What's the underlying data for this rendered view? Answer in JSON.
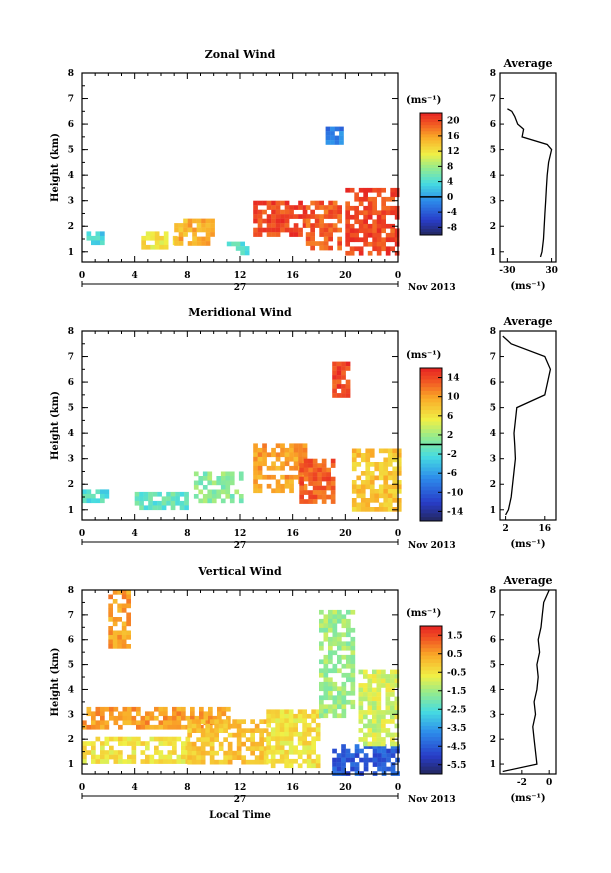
{
  "chart_data": [
    {
      "type": "heatmap",
      "title": "Zonal Wind",
      "ylabel": "Height (km)",
      "y_ticks": [
        "1",
        "2",
        "3",
        "4",
        "5",
        "6",
        "7",
        "8"
      ],
      "ylim": [
        0.6,
        8
      ],
      "x_ticks": [
        "0",
        "4",
        "8",
        "12",
        "16",
        "20",
        "0"
      ],
      "date_label": "27",
      "month_label": "Nov 2013",
      "xlabel": "",
      "colorbar": {
        "unit_label": "(ms⁻¹)",
        "ticks": [
          "20",
          "16",
          "12",
          "8",
          "4",
          "0",
          "-4",
          "-8"
        ],
        "range": [
          -10,
          22
        ],
        "zero_line": 0
      },
      "profile": {
        "title": "Average",
        "x_ticks": [
          "-30",
          "30"
        ],
        "xlim": [
          -40,
          36
        ],
        "xlabel": "(ms⁻¹)",
        "height": [
          0.8,
          1.0,
          1.5,
          2.0,
          2.5,
          3.0,
          3.5,
          4.0,
          4.5,
          5.0,
          5.2,
          5.5,
          5.8,
          6.0,
          6.3,
          6.5,
          6.6
        ],
        "value": [
          15,
          17,
          19,
          20,
          21,
          22,
          23,
          24,
          26,
          30,
          24,
          -10,
          -8,
          -16,
          -20,
          -24,
          -30
        ]
      },
      "regions": [
        {
          "name": "low-cyan",
          "x": [
            0,
            1.5
          ],
          "y": [
            1.3,
            1.8
          ],
          "level": 3
        },
        {
          "name": "low-yellow",
          "x": [
            4.5,
            7
          ],
          "y": [
            1.1,
            1.8
          ],
          "level": 12
        },
        {
          "name": "orange-band",
          "x": [
            7,
            10
          ],
          "y": [
            1.4,
            2.3
          ],
          "level": 15
        },
        {
          "name": "cyan-patch",
          "x": [
            11,
            12.5
          ],
          "y": [
            1.0,
            1.4
          ],
          "level": 4
        },
        {
          "name": "red-16",
          "x": [
            13,
            17
          ],
          "y": [
            1.7,
            3.0
          ],
          "level": 20
        },
        {
          "name": "red-18",
          "x": [
            17,
            19.5
          ],
          "y": [
            1.2,
            3.0
          ],
          "level": 19
        },
        {
          "name": "red-20",
          "x": [
            20,
            24
          ],
          "y": [
            1.0,
            3.5
          ],
          "level": 20
        },
        {
          "name": "upper-blue",
          "x": [
            18.5,
            19.8
          ],
          "y": [
            5.2,
            5.9
          ],
          "level": -2
        }
      ]
    },
    {
      "type": "heatmap",
      "title": "Meridional Wind",
      "ylabel": "Height (km)",
      "y_ticks": [
        "1",
        "2",
        "3",
        "4",
        "5",
        "6",
        "7",
        "8"
      ],
      "ylim": [
        0.6,
        8
      ],
      "x_ticks": [
        "0",
        "4",
        "8",
        "12",
        "16",
        "20",
        "0"
      ],
      "date_label": "27",
      "month_label": "Nov 2013",
      "xlabel": "",
      "colorbar": {
        "unit_label": "(ms⁻¹)",
        "ticks": [
          "14",
          "10",
          "6",
          "2",
          "-2",
          "-6",
          "-10",
          "-14"
        ],
        "range": [
          -16,
          16
        ],
        "zero_line": 0
      },
      "profile": {
        "title": "Average",
        "x_ticks": [
          "2",
          "16"
        ],
        "xlim": [
          0,
          20
        ],
        "xlabel": "(ms⁻¹)",
        "height": [
          0.8,
          1.0,
          1.5,
          2.0,
          2.5,
          3.0,
          3.5,
          4.0,
          4.5,
          5.0,
          5.5,
          6.0,
          6.5,
          7.0,
          7.5,
          7.8
        ],
        "value": [
          2,
          3,
          4,
          4.5,
          5,
          5.5,
          5.3,
          5,
          5.5,
          6,
          16,
          17,
          18,
          16,
          4,
          1
        ]
      },
      "regions": [
        {
          "name": "low-cyan",
          "x": [
            0,
            2
          ],
          "y": [
            1.3,
            1.8
          ],
          "level": -2
        },
        {
          "name": "low-green",
          "x": [
            4,
            8
          ],
          "y": [
            1.0,
            1.7
          ],
          "level": -1
        },
        {
          "name": "green-band",
          "x": [
            8.5,
            12
          ],
          "y": [
            1.4,
            2.5
          ],
          "level": 1
        },
        {
          "name": "orange-16",
          "x": [
            13,
            17
          ],
          "y": [
            1.8,
            3.6
          ],
          "level": 10
        },
        {
          "name": "red-18",
          "x": [
            16.5,
            19
          ],
          "y": [
            1.3,
            3.0
          ],
          "level": 13
        },
        {
          "name": "red-upper",
          "x": [
            19,
            20.3
          ],
          "y": [
            5.5,
            6.8
          ],
          "level": 14
        },
        {
          "name": "orange-22",
          "x": [
            20.5,
            24
          ],
          "y": [
            1.0,
            3.4
          ],
          "level": 8
        }
      ]
    },
    {
      "type": "heatmap",
      "title": "Vertical Wind",
      "ylabel": "Height (km)",
      "y_ticks": [
        "1",
        "2",
        "3",
        "4",
        "5",
        "6",
        "7",
        "8"
      ],
      "ylim": [
        0.6,
        8
      ],
      "x_ticks": [
        "0",
        "4",
        "8",
        "12",
        "16",
        "20",
        "0"
      ],
      "date_label": "27",
      "month_label": "Nov 2013",
      "xlabel": "Local Time",
      "colorbar": {
        "unit_label": "(ms⁻¹)",
        "ticks": [
          "1.5",
          "0.5",
          "-0.5",
          "-1.5",
          "-2.5",
          "-3.5",
          "-4.5",
          "-5.5"
        ],
        "range": [
          -6,
          2
        ]
      },
      "profile": {
        "title": "Average",
        "x_ticks": [
          "-2",
          "0"
        ],
        "xlim": [
          -3.6,
          0.5
        ],
        "xlabel": "(ms⁻¹)",
        "height": [
          0.7,
          1.0,
          1.5,
          2.0,
          2.5,
          3.0,
          3.5,
          4.0,
          4.5,
          5.0,
          5.5,
          6.0,
          6.5,
          7.0,
          7.5,
          8.0
        ],
        "value": [
          -3.4,
          -0.9,
          -1.0,
          -1.1,
          -1.2,
          -1.0,
          -1.1,
          -0.9,
          -0.8,
          -0.9,
          -0.7,
          -0.8,
          -0.6,
          -0.5,
          -0.4,
          0.0
        ]
      },
      "regions": [
        {
          "name": "upper-orange",
          "x": [
            2,
            3.5
          ],
          "y": [
            5.8,
            8.0
          ],
          "level": 0.5
        },
        {
          "name": "low-yellow",
          "x": [
            0,
            8
          ],
          "y": [
            1.1,
            2.1
          ],
          "level": -0.5
        },
        {
          "name": "mid-orange",
          "x": [
            0,
            11
          ],
          "y": [
            2.5,
            3.3
          ],
          "level": 0.5
        },
        {
          "name": "band-12",
          "x": [
            8,
            14
          ],
          "y": [
            1.0,
            2.8
          ],
          "level": 0.0
        },
        {
          "name": "band-16",
          "x": [
            14,
            18
          ],
          "y": [
            1.0,
            3.2
          ],
          "level": -0.5
        },
        {
          "name": "green-upper",
          "x": [
            18,
            20.5
          ],
          "y": [
            3.0,
            7.2
          ],
          "level": -1.5
        },
        {
          "name": "blue-low",
          "x": [
            19,
            24
          ],
          "y": [
            0.7,
            1.8
          ],
          "level": -4.5
        },
        {
          "name": "yellow-22",
          "x": [
            21,
            24
          ],
          "y": [
            1.8,
            4.8
          ],
          "level": -1.0
        }
      ]
    }
  ]
}
